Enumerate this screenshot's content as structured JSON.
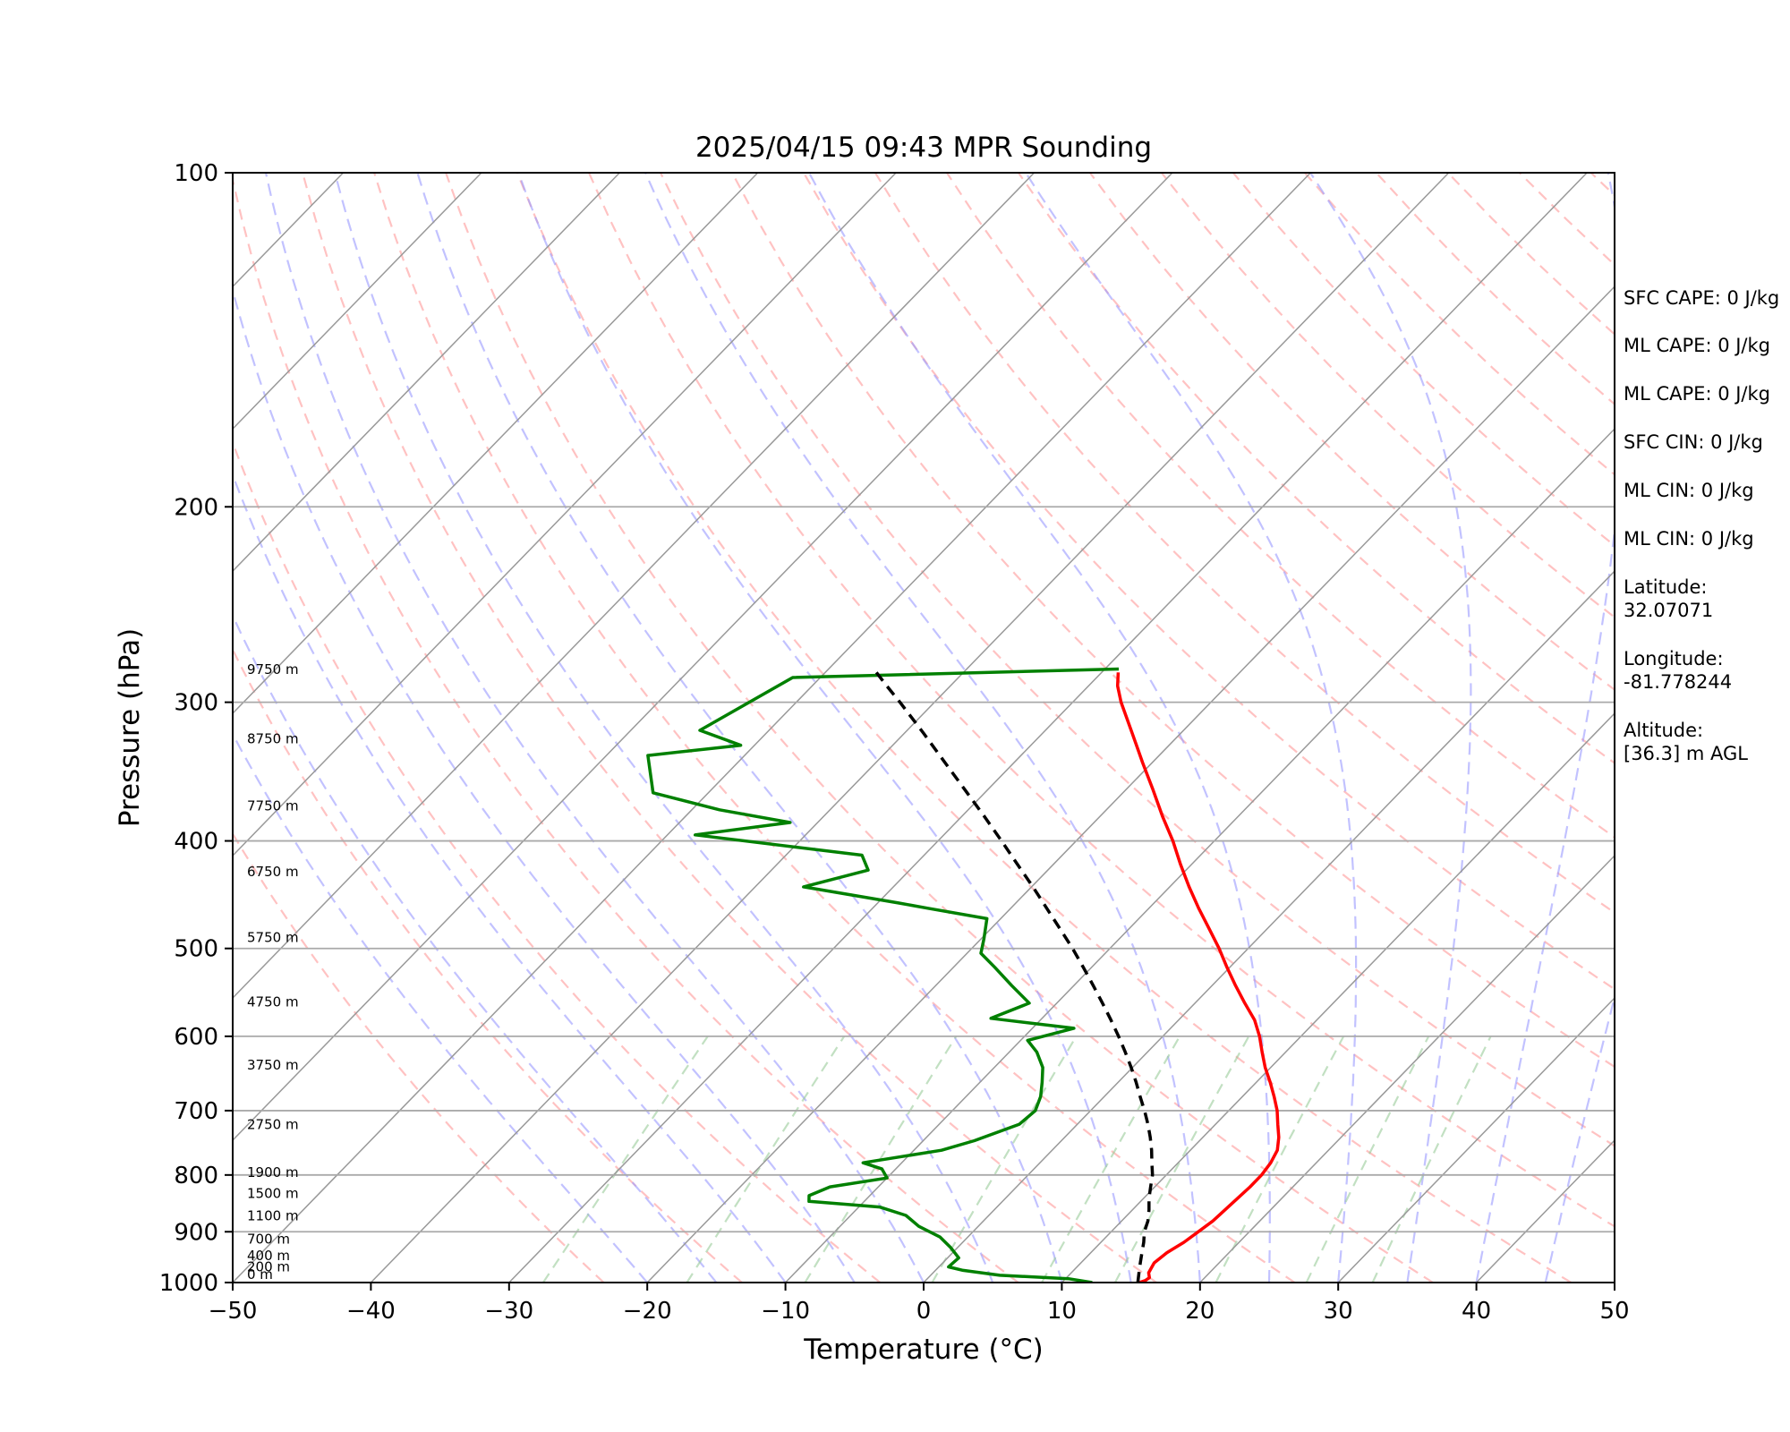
{
  "chart_data": {
    "type": "skewt",
    "title": "2025/04/15 09:43 MPR Sounding",
    "xlabel": "Temperature (°C)",
    "ylabel": "Pressure (hPa)",
    "xlim": [
      -50,
      50
    ],
    "ylim": [
      1000,
      100
    ],
    "x_ticks": [
      -50,
      -40,
      -30,
      -20,
      -10,
      0,
      10,
      20,
      30,
      40,
      50
    ],
    "x_tick_labels": [
      "−50",
      "−40",
      "−30",
      "−20",
      "−10",
      "0",
      "10",
      "20",
      "30",
      "40",
      "50"
    ],
    "y_ticks": [
      100,
      200,
      300,
      400,
      500,
      600,
      700,
      800,
      900,
      1000
    ],
    "y_tick_labels": [
      "100",
      "200",
      "300",
      "400",
      "500",
      "600",
      "700",
      "800",
      "900",
      "1000"
    ],
    "grid": true,
    "colors": {
      "temperature": "#ff0000",
      "dewpoint": "#008000",
      "parcel": "#000000",
      "dry_adiabats": "#ff9999",
      "moist_adiabats": "#9999ff",
      "mixing_ratio": "#99cc99",
      "isotherms": "#999999"
    },
    "height_markers": [
      {
        "label": "0 m",
        "pressure": 996
      },
      {
        "label": "200 m",
        "pressure": 981
      },
      {
        "label": "400 m",
        "pressure": 958
      },
      {
        "label": "700 m",
        "pressure": 926
      },
      {
        "label": "1100 m",
        "pressure": 882
      },
      {
        "label": "1500 m",
        "pressure": 842
      },
      {
        "label": "1900 m",
        "pressure": 806
      },
      {
        "label": "2750 m",
        "pressure": 730
      },
      {
        "label": "3750 m",
        "pressure": 645
      },
      {
        "label": "4750 m",
        "pressure": 566
      },
      {
        "label": "5750 m",
        "pressure": 495
      },
      {
        "label": "6750 m",
        "pressure": 432
      },
      {
        "label": "7750 m",
        "pressure": 377
      },
      {
        "label": "8750 m",
        "pressure": 328
      },
      {
        "label": "9750 m",
        "pressure": 284
      }
    ],
    "series": [
      {
        "key": "temperature",
        "points": [
          [
            1000,
            15.6
          ],
          [
            996,
            15.9
          ],
          [
            990,
            16.0
          ],
          [
            980,
            15.6
          ],
          [
            960,
            15.3
          ],
          [
            940,
            15.5
          ],
          [
            920,
            16.0
          ],
          [
            900,
            16.3
          ],
          [
            880,
            16.6
          ],
          [
            860,
            16.7
          ],
          [
            840,
            16.8
          ],
          [
            820,
            16.9
          ],
          [
            800,
            16.9
          ],
          [
            780,
            16.7
          ],
          [
            760,
            16.3
          ],
          [
            740,
            15.5
          ],
          [
            720,
            14.5
          ],
          [
            700,
            13.5
          ],
          [
            680,
            12.3
          ],
          [
            660,
            11.0
          ],
          [
            640,
            9.6
          ],
          [
            620,
            8.3
          ],
          [
            600,
            7.0
          ],
          [
            580,
            5.5
          ],
          [
            560,
            3.6
          ],
          [
            540,
            1.7
          ],
          [
            520,
            -0.2
          ],
          [
            500,
            -2.1
          ],
          [
            480,
            -4.2
          ],
          [
            460,
            -6.4
          ],
          [
            440,
            -8.6
          ],
          [
            420,
            -10.8
          ],
          [
            400,
            -13.0
          ],
          [
            380,
            -15.5
          ],
          [
            360,
            -18.0
          ],
          [
            340,
            -20.7
          ],
          [
            320,
            -23.5
          ],
          [
            300,
            -26.5
          ],
          [
            290,
            -27.9
          ],
          [
            282,
            -28.8
          ]
        ]
      },
      {
        "key": "dewpoint",
        "points": [
          [
            1000,
            12.2
          ],
          [
            992,
            10.2
          ],
          [
            985,
            5.0
          ],
          [
            975,
            2.0
          ],
          [
            968,
            0.7
          ],
          [
            950,
            0.8
          ],
          [
            930,
            -0.5
          ],
          [
            910,
            -2.0
          ],
          [
            890,
            -4.3
          ],
          [
            870,
            -6.0
          ],
          [
            855,
            -8.5
          ],
          [
            845,
            -14.0
          ],
          [
            835,
            -14.4
          ],
          [
            820,
            -13.5
          ],
          [
            805,
            -10.0
          ],
          [
            790,
            -11.0
          ],
          [
            780,
            -12.8
          ],
          [
            760,
            -8.0
          ],
          [
            745,
            -6.3
          ],
          [
            720,
            -4.2
          ],
          [
            700,
            -4.0
          ],
          [
            680,
            -4.6
          ],
          [
            660,
            -5.5
          ],
          [
            640,
            -6.5
          ],
          [
            620,
            -8.0
          ],
          [
            605,
            -9.5
          ],
          [
            590,
            -7.0
          ],
          [
            578,
            -13.7
          ],
          [
            560,
            -12.0
          ],
          [
            540,
            -14.5
          ],
          [
            520,
            -17.0
          ],
          [
            505,
            -19.0
          ],
          [
            490,
            -19.8
          ],
          [
            470,
            -21.0
          ],
          [
            460,
            -26.0
          ],
          [
            455,
            -28.5
          ],
          [
            440,
            -36.5
          ],
          [
            425,
            -33.0
          ],
          [
            412,
            -34.5
          ],
          [
            395,
            -48.0
          ],
          [
            385,
            -42.0
          ],
          [
            375,
            -48.0
          ],
          [
            362,
            -54.0
          ],
          [
            335,
            -57.0
          ],
          [
            328,
            -51.0
          ],
          [
            318,
            -55.0
          ],
          [
            285,
            -52.0
          ],
          [
            280,
            -29.0
          ]
        ]
      },
      {
        "key": "parcel",
        "points": [
          [
            1000,
            15.5
          ],
          [
            980,
            14.9
          ],
          [
            960,
            14.3
          ],
          [
            940,
            13.7
          ],
          [
            920,
            13.1
          ],
          [
            900,
            12.4
          ],
          [
            880,
            11.9
          ],
          [
            860,
            11.2
          ],
          [
            840,
            10.4
          ],
          [
            820,
            9.7
          ],
          [
            800,
            9.0
          ],
          [
            780,
            8.1
          ],
          [
            760,
            7.2
          ],
          [
            740,
            6.2
          ],
          [
            720,
            5.1
          ],
          [
            700,
            3.9
          ],
          [
            680,
            2.6
          ],
          [
            660,
            1.3
          ],
          [
            640,
            -0.1
          ],
          [
            620,
            -1.6
          ],
          [
            600,
            -3.2
          ],
          [
            580,
            -4.9
          ],
          [
            560,
            -6.7
          ],
          [
            540,
            -8.6
          ],
          [
            520,
            -10.6
          ],
          [
            500,
            -12.7
          ],
          [
            480,
            -15.0
          ],
          [
            460,
            -17.4
          ],
          [
            440,
            -19.9
          ],
          [
            420,
            -22.6
          ],
          [
            400,
            -25.4
          ],
          [
            380,
            -28.4
          ],
          [
            360,
            -31.6
          ],
          [
            340,
            -35.0
          ],
          [
            320,
            -38.6
          ],
          [
            300,
            -42.5
          ],
          [
            290,
            -44.6
          ],
          [
            282,
            -46.3
          ]
        ]
      }
    ]
  },
  "info_panel": {
    "sfc_cape": "SFC CAPE: 0 J/kg",
    "ml_cape_1": "ML CAPE: 0 J/kg",
    "ml_cape_2": "ML CAPE: 0 J/kg",
    "sfc_cin": "SFC CIN: 0 J/kg",
    "ml_cin_1": "ML CIN: 0 J/kg",
    "ml_cin_2": "ML CIN: 0 J/kg",
    "latitude_label": "Latitude:",
    "latitude_value": "32.07071",
    "longitude_label": "Longitude:",
    "longitude_value": "-81.778244",
    "altitude_label": "Altitude:",
    "altitude_value": "[36.3] m AGL"
  }
}
